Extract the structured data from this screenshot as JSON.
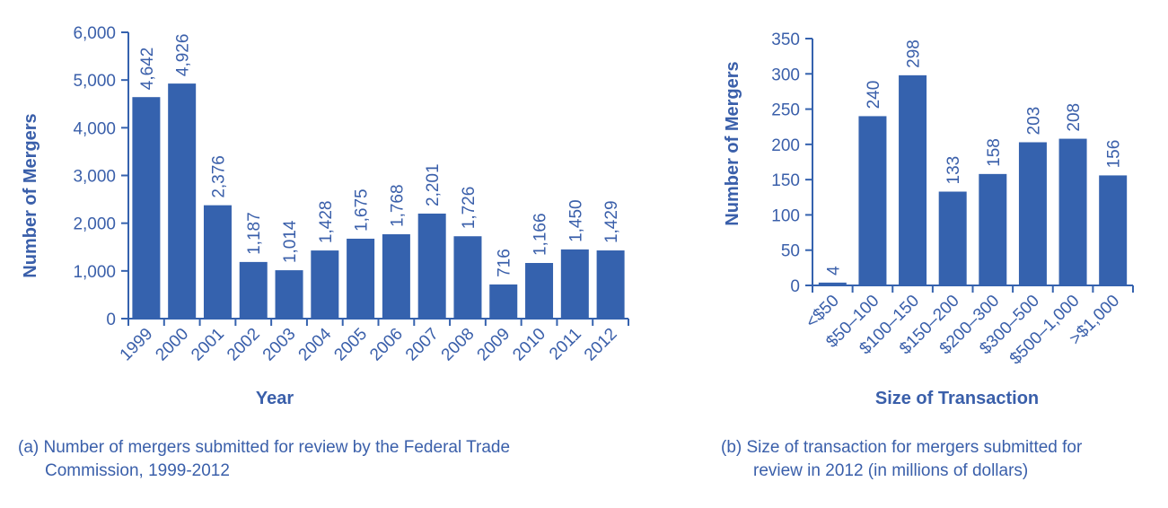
{
  "colors": {
    "bar": "#3562ae",
    "text": "#3a5faa"
  },
  "chart_data": [
    {
      "type": "bar",
      "xlabel": "Year",
      "ylabel": "Number of Mergers",
      "ylim": [
        0,
        6000
      ],
      "yticks": [
        0,
        1000,
        2000,
        3000,
        4000,
        5000,
        6000
      ],
      "ytick_labels": [
        "0",
        "1,000",
        "2,000",
        "3,000",
        "4,000",
        "5,000",
        "6,000"
      ],
      "categories": [
        "1999",
        "2000",
        "2001",
        "2002",
        "2003",
        "2004",
        "2005",
        "2006",
        "2007",
        "2008",
        "2009",
        "2010",
        "2011",
        "2012"
      ],
      "values": [
        4642,
        4926,
        2376,
        1187,
        1014,
        1428,
        1675,
        1768,
        2201,
        1726,
        716,
        1166,
        1450,
        1429
      ],
      "data_labels": [
        "4,642",
        "4,926",
        "2,376",
        "1,187",
        "1,014",
        "1,428",
        "1,675",
        "1,768",
        "2,201",
        "1,726",
        "716",
        "1,166",
        "1,450",
        "1,429"
      ],
      "grid": false,
      "caption_line1": "(a) Number of mergers submitted for review by the Federal Trade",
      "caption_line2": "Commission, 1999-2012"
    },
    {
      "type": "bar",
      "xlabel": "Size of Transaction",
      "ylabel": "Number of Mergers",
      "ylim": [
        0,
        350
      ],
      "yticks": [
        0,
        50,
        100,
        150,
        200,
        250,
        300,
        350
      ],
      "ytick_labels": [
        "0",
        "50",
        "100",
        "150",
        "200",
        "250",
        "300",
        "350"
      ],
      "categories": [
        "<$50",
        "$50–100",
        "$100–150",
        "$150–200",
        "$200–300",
        "$300–500",
        "$500–1,000",
        ">$1,000"
      ],
      "values": [
        4,
        240,
        298,
        133,
        158,
        203,
        208,
        156
      ],
      "data_labels": [
        "4",
        "240",
        "298",
        "133",
        "158",
        "203",
        "208",
        "156"
      ],
      "grid": false,
      "caption_line1": "(b) Size of transaction for mergers submitted for",
      "caption_line2": "review in 2012 (in millions of dollars)"
    }
  ]
}
